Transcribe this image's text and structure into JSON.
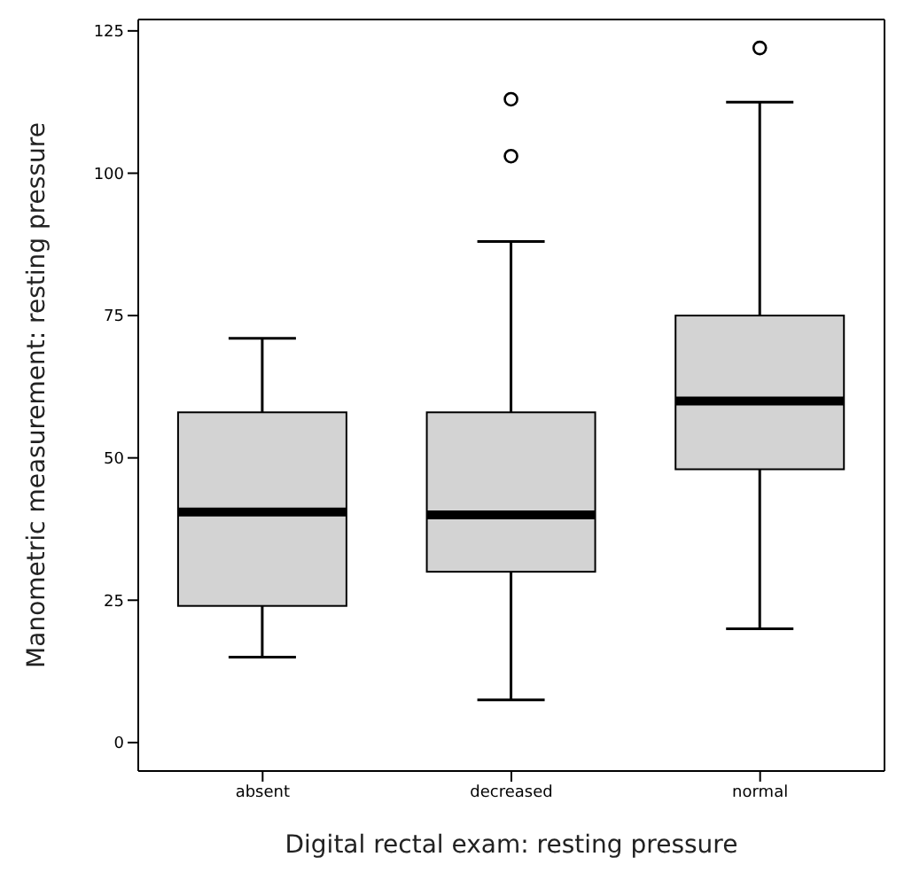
{
  "chart_data": {
    "type": "box",
    "xlabel": "Digital rectal exam: resting pressure",
    "ylabel": "Manometric measurement: resting  pressure",
    "categories": [
      "absent",
      "decreased",
      "normal"
    ],
    "boxes": [
      {
        "low": 15,
        "q1": 24,
        "median": 40.5,
        "q3": 58,
        "high": 71
      },
      {
        "low": 7.5,
        "q1": 30,
        "median": 40,
        "q3": 58,
        "high": 88,
        "outliers": [
          103,
          113
        ]
      },
      {
        "low": 20,
        "q1": 48,
        "median": 60,
        "q3": 75,
        "high": 112.5,
        "outliers": [
          122
        ]
      }
    ],
    "color": "#d3d3d3",
    "ylim": [
      -5,
      127
    ],
    "yticks": [
      0,
      25,
      50,
      75,
      100,
      125
    ]
  }
}
